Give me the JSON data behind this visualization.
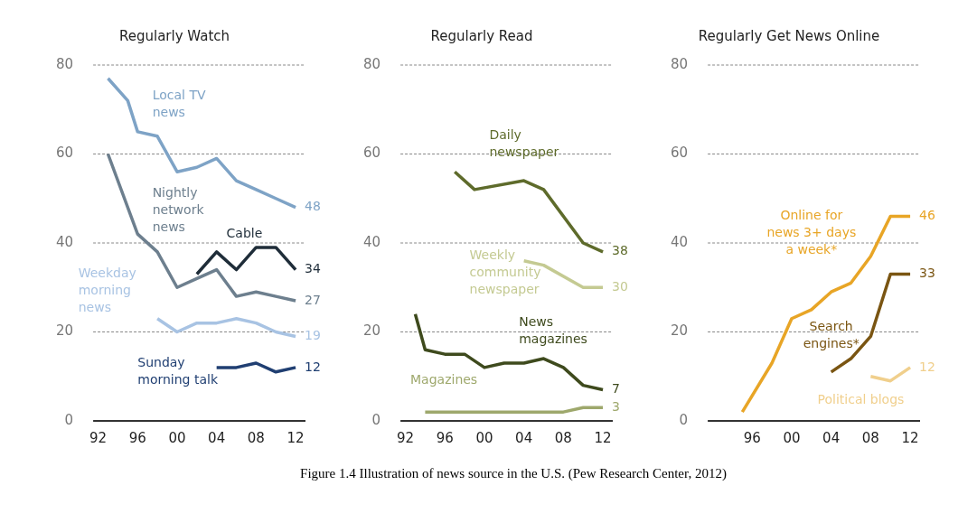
{
  "chart_data": [
    {
      "type": "line",
      "title": "Regularly Watch",
      "xlim": [
        1991.5,
        2013
      ],
      "xticks": [
        {
          "value": 1992,
          "label": "92"
        },
        {
          "value": 1996,
          "label": "96"
        },
        {
          "value": 2000,
          "label": "00"
        },
        {
          "value": 2004,
          "label": "04"
        },
        {
          "value": 2008,
          "label": "08"
        },
        {
          "value": 2012,
          "label": "12"
        }
      ],
      "ylim": [
        0,
        80
      ],
      "yticks": [
        0,
        20,
        40,
        60,
        80
      ],
      "grid": "y",
      "legend": false,
      "series": [
        {
          "name": "Local TV news",
          "color": "#7ea3c6",
          "x": [
            1993,
            1995,
            1996,
            1998,
            2000,
            2002,
            2004,
            2006,
            2008,
            2010,
            2012
          ],
          "values": [
            77,
            72,
            65,
            64,
            56,
            57,
            59,
            54,
            52,
            50,
            48
          ],
          "value_labels": [
            null,
            null,
            null,
            null,
            null,
            null,
            null,
            null,
            null,
            null,
            "48"
          ]
        },
        {
          "name": "Nightly network news",
          "color": "#6d7f8e",
          "x": [
            1993,
            1996,
            1998,
            2000,
            2002,
            2004,
            2006,
            2008,
            2010,
            2012
          ],
          "values": [
            60,
            42,
            38,
            30,
            32,
            34,
            28,
            29,
            28,
            27
          ],
          "value_labels": [
            null,
            null,
            null,
            null,
            null,
            null,
            null,
            null,
            null,
            "27"
          ]
        },
        {
          "name": "Cable",
          "color": "#1f2d39",
          "x": [
            2002,
            2004,
            2006,
            2008,
            2010,
            2012
          ],
          "values": [
            33,
            38,
            34,
            39,
            39,
            34
          ],
          "value_labels": [
            null,
            null,
            null,
            null,
            null,
            "34"
          ]
        },
        {
          "name": "Weekday morning news",
          "color": "#a8c3e3",
          "x": [
            1998,
            2000,
            2002,
            2004,
            2006,
            2008,
            2010,
            2012
          ],
          "values": [
            23,
            20,
            22,
            22,
            23,
            22,
            20,
            19
          ],
          "value_labels": [
            null,
            null,
            null,
            null,
            null,
            null,
            null,
            "19"
          ]
        },
        {
          "name": "Sunday morning talk",
          "color": "#203f72",
          "x": [
            2004,
            2006,
            2008,
            2010,
            2012
          ],
          "values": [
            12,
            12,
            13,
            11,
            12
          ],
          "value_labels": [
            null,
            null,
            null,
            null,
            "12"
          ]
        }
      ]
    },
    {
      "type": "line",
      "title": "Regularly Read",
      "xlim": [
        1991.5,
        2013
      ],
      "xticks": [
        {
          "value": 1992,
          "label": "92"
        },
        {
          "value": 1996,
          "label": "96"
        },
        {
          "value": 2000,
          "label": "00"
        },
        {
          "value": 2004,
          "label": "04"
        },
        {
          "value": 2008,
          "label": "08"
        },
        {
          "value": 2012,
          "label": "12"
        }
      ],
      "ylim": [
        0,
        80
      ],
      "yticks": [
        0,
        20,
        40,
        60,
        80
      ],
      "grid": "y",
      "legend": false,
      "series": [
        {
          "name": "Daily newspaper",
          "color": "#5e6b2b",
          "x": [
            1997,
            1999,
            2004,
            2006,
            2010,
            2012
          ],
          "values": [
            56,
            52,
            54,
            52,
            40,
            38
          ],
          "value_labels": [
            null,
            null,
            null,
            null,
            null,
            "38"
          ]
        },
        {
          "name": "Weekly community newspaper",
          "color": "#c4ca92",
          "x": [
            2004,
            2006,
            2010,
            2012
          ],
          "values": [
            36,
            35,
            30,
            30
          ],
          "value_labels": [
            null,
            null,
            null,
            "30"
          ]
        },
        {
          "name": "News magazines",
          "color": "#3e4a1d",
          "x": [
            1993,
            1994,
            1996,
            1998,
            2000,
            2002,
            2004,
            2006,
            2008,
            2010,
            2012
          ],
          "values": [
            24,
            16,
            15,
            15,
            12,
            13,
            13,
            14,
            12,
            8,
            7
          ],
          "value_labels": [
            null,
            null,
            null,
            null,
            null,
            null,
            null,
            null,
            null,
            null,
            "7"
          ]
        },
        {
          "name": "Magazines",
          "color": "#9ea86c",
          "x": [
            1994,
            2008,
            2010,
            2012
          ],
          "values": [
            2,
            2,
            3,
            3
          ],
          "value_labels": [
            null,
            null,
            null,
            "3"
          ]
        }
      ]
    },
    {
      "type": "line",
      "title": "Regularly Get News Online",
      "xlim": [
        1991.5,
        2013
      ],
      "xticks": [
        {
          "value": 1996,
          "label": "96"
        },
        {
          "value": 2000,
          "label": "00"
        },
        {
          "value": 2004,
          "label": "04"
        },
        {
          "value": 2008,
          "label": "08"
        },
        {
          "value": 2012,
          "label": "12"
        }
      ],
      "ylim": [
        0,
        80
      ],
      "yticks": [
        0,
        20,
        40,
        60,
        80
      ],
      "grid": "y",
      "legend": false,
      "annotations": [
        "Figure 1.4 Illustration of news source in the U.S. (Pew Research Center, 2012)"
      ],
      "series": [
        {
          "name": "Online for news 3+ days a week*",
          "color": "#e8a526",
          "x": [
            1995,
            1998,
            2000,
            2002,
            2004,
            2006,
            2008,
            2010,
            2012
          ],
          "values": [
            2,
            13,
            23,
            25,
            29,
            31,
            37,
            46,
            46
          ],
          "value_labels": [
            null,
            null,
            null,
            null,
            null,
            null,
            null,
            null,
            "46"
          ]
        },
        {
          "name": "Search engines*",
          "color": "#7a5512",
          "x": [
            2004,
            2006,
            2008,
            2010,
            2012
          ],
          "values": [
            11,
            14,
            19,
            33,
            33
          ],
          "value_labels": [
            null,
            null,
            null,
            null,
            "33"
          ]
        },
        {
          "name": "Political blogs",
          "color": "#f0cf8c",
          "x": [
            2008,
            2010,
            2012
          ],
          "values": [
            10,
            9,
            12
          ],
          "value_labels": [
            null,
            null,
            "12"
          ]
        }
      ]
    }
  ]
}
